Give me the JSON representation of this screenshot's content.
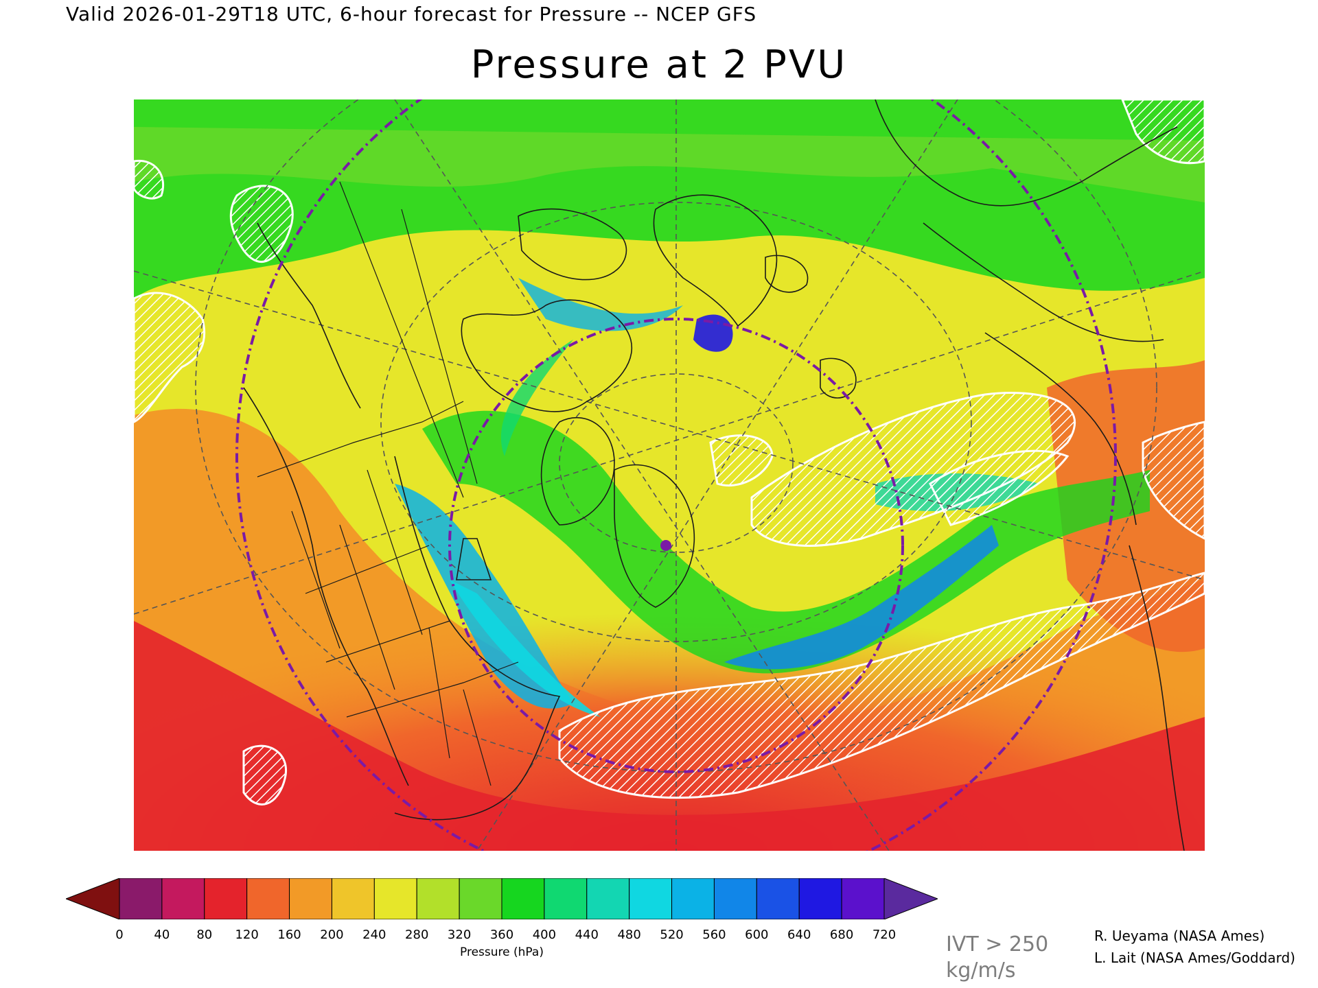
{
  "header": {
    "valid_line": "Valid 2026-01-29T18 UTC, 6-hour forecast for Pressure -- NCEP GFS",
    "title": "Pressure at 2 PVU"
  },
  "colorbar": {
    "label": "Pressure (hPa)",
    "ticks": [
      "0",
      "40",
      "80",
      "120",
      "160",
      "200",
      "240",
      "280",
      "320",
      "360",
      "400",
      "440",
      "480",
      "520",
      "560",
      "600",
      "640",
      "680",
      "720"
    ],
    "colors": [
      "#7f1f2f",
      "#8a1a6a",
      "#c4195e",
      "#e4232c",
      "#f0662b",
      "#f29a27",
      "#efc52a",
      "#e6e62a",
      "#b2e02a",
      "#6ad82a",
      "#16d61f",
      "#10d871",
      "#13d6b2",
      "#10d7e1",
      "#0bb2e6",
      "#1186e8",
      "#1a52e6",
      "#1f18e2",
      "#5b11cc",
      "#5a2a9e"
    ],
    "under_color": "#7f1010",
    "over_color": "#5a2a9e"
  },
  "ivt_note": {
    "line1": "IVT > 250",
    "line2": "kg/m/s"
  },
  "credits": {
    "line1": "R. Ueyama (NASA Ames)",
    "line2": "L. Lait (NASA Ames/Goddard)"
  }
}
